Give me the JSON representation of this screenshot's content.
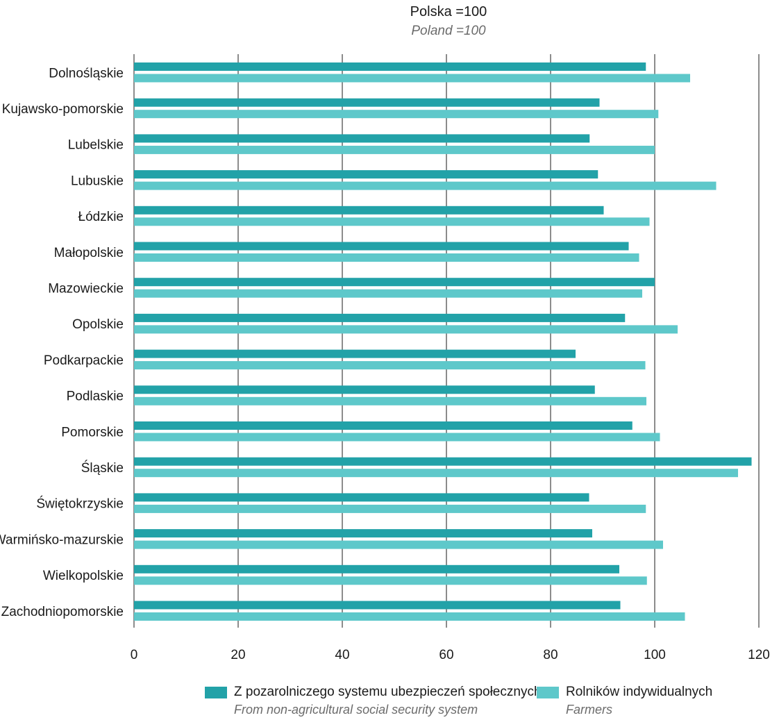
{
  "chart_data": {
    "type": "bar",
    "orientation": "horizontal",
    "title": "Polska =100",
    "subtitle": "Poland =100",
    "categories": [
      "Dolnośląskie",
      "Kujawsko-pomorskie",
      "Lubelskie",
      "Lubuskie",
      "Łódzkie",
      "Małopolskie",
      "Mazowieckie",
      "Opolskie",
      "Podkarpackie",
      "Podlaskie",
      "Pomorskie",
      "Śląskie",
      "Świętokrzyskie",
      "Warmińsko-mazurskie",
      "Wielkopolskie",
      "Zachodniopomorskie"
    ],
    "series": [
      {
        "name": "Z pozarolniczego systemu ubezpieczeń społecznych",
        "name_en": "From non-agricultural social security system",
        "color": "#22A2A8",
        "values": [
          98.3,
          89.4,
          87.5,
          89.1,
          90.2,
          95.0,
          100.0,
          94.3,
          84.8,
          88.5,
          95.7,
          118.6,
          87.4,
          88.0,
          93.2,
          93.4
        ]
      },
      {
        "name": "Rolników indywidualnych",
        "name_en": "Farmers",
        "color": "#5EC8CA",
        "values": [
          106.8,
          100.7,
          100.0,
          111.8,
          99.0,
          97.0,
          97.6,
          104.4,
          98.2,
          98.4,
          101.0,
          116.0,
          98.3,
          101.6,
          98.5,
          105.8
        ]
      }
    ],
    "xlim": [
      0,
      120
    ],
    "x_ticks": [
      0,
      20,
      40,
      60,
      80,
      100,
      120
    ],
    "grid": true,
    "legend_position": "bottom"
  }
}
